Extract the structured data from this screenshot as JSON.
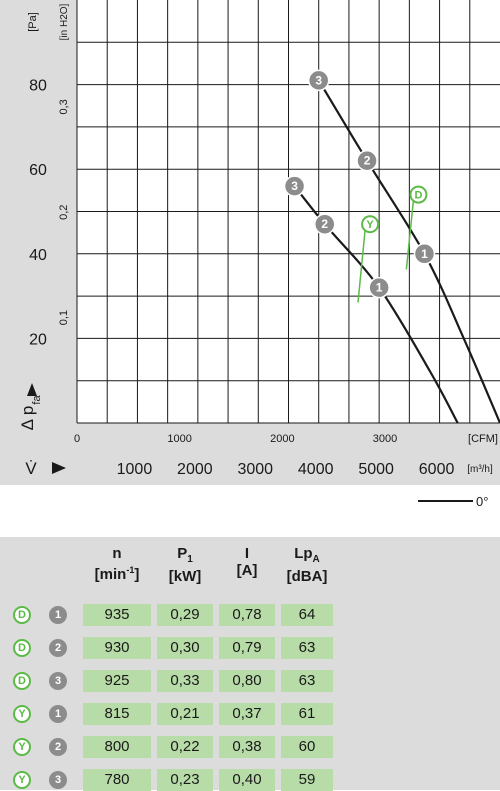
{
  "chart_data": {
    "type": "line",
    "title": "",
    "y_axis_left": {
      "label": "Δ p",
      "label_sub": "fa",
      "unit": "[Pa]",
      "ticks": [
        "20",
        "40",
        "60",
        "80"
      ],
      "range": [
        0,
        100
      ]
    },
    "y_axis_inner": {
      "unit": "[in H2O]",
      "ticks": [
        "0,1",
        "0,2",
        "0,3"
      ]
    },
    "x_axis_top": {
      "unit": "[CFM]",
      "ticks": [
        "0",
        "1000",
        "2000",
        "3000"
      ]
    },
    "x_axis_bottom": {
      "label": "V̇",
      "unit": "[m³/h]",
      "ticks": [
        "1000",
        "2000",
        "3000",
        "4000",
        "5000",
        "6000"
      ],
      "range": [
        0,
        7000
      ]
    },
    "series": [
      {
        "name": "D",
        "x": [
          4000,
          4800,
          5750,
          6400,
          7000
        ],
        "y": [
          81,
          62,
          40,
          20,
          0
        ]
      },
      {
        "name": "Y",
        "x": [
          3600,
          4100,
          5000,
          5850,
          6300
        ],
        "y": [
          56,
          47,
          32,
          12,
          0
        ]
      }
    ],
    "operating_points": [
      {
        "series": "D",
        "label": "3",
        "x": 4000,
        "y": 81
      },
      {
        "series": "D",
        "label": "2",
        "x": 4800,
        "y": 62
      },
      {
        "series": "D",
        "label": "1",
        "x": 5750,
        "y": 40
      },
      {
        "series": "Y",
        "label": "3",
        "x": 3600,
        "y": 56
      },
      {
        "series": "Y",
        "label": "2",
        "x": 4100,
        "y": 47
      },
      {
        "series": "Y",
        "label": "1",
        "x": 5000,
        "y": 32
      }
    ],
    "curve_tags": [
      {
        "series": "D",
        "text": "D",
        "x": 5650,
        "y": 54
      },
      {
        "series": "Y",
        "text": "Y",
        "x": 4850,
        "y": 47
      }
    ],
    "legend": {
      "text": "0°"
    }
  },
  "table": {
    "headers": [
      {
        "main": "n",
        "unit": "[min",
        "unit_sup": "-1",
        "unit_end": "]"
      },
      {
        "main": "P",
        "main_sub": "1",
        "unit": "[kW]"
      },
      {
        "main": "I",
        "unit": "[A]"
      },
      {
        "main": "Lp",
        "main_sub": "A",
        "unit": "[dBA]"
      }
    ],
    "rows": [
      {
        "type": "D",
        "point": "1",
        "n": "935",
        "p1": "0,29",
        "i": "0,78",
        "lpa": "64"
      },
      {
        "type": "D",
        "point": "2",
        "n": "930",
        "p1": "0,30",
        "i": "0,79",
        "lpa": "63"
      },
      {
        "type": "D",
        "point": "3",
        "n": "925",
        "p1": "0,33",
        "i": "0,80",
        "lpa": "63"
      },
      {
        "type": "Y",
        "point": "1",
        "n": "815",
        "p1": "0,21",
        "i": "0,37",
        "lpa": "61"
      },
      {
        "type": "Y",
        "point": "2",
        "n": "800",
        "p1": "0,22",
        "i": "0,38",
        "lpa": "60"
      },
      {
        "type": "Y",
        "point": "3",
        "n": "780",
        "p1": "0,23",
        "i": "0,40",
        "lpa": "59"
      }
    ]
  },
  "colors": {
    "green": "#5cba47",
    "cell": "#b8dca8",
    "marker": "#8c8c8c",
    "band": "#dcdcdc"
  }
}
